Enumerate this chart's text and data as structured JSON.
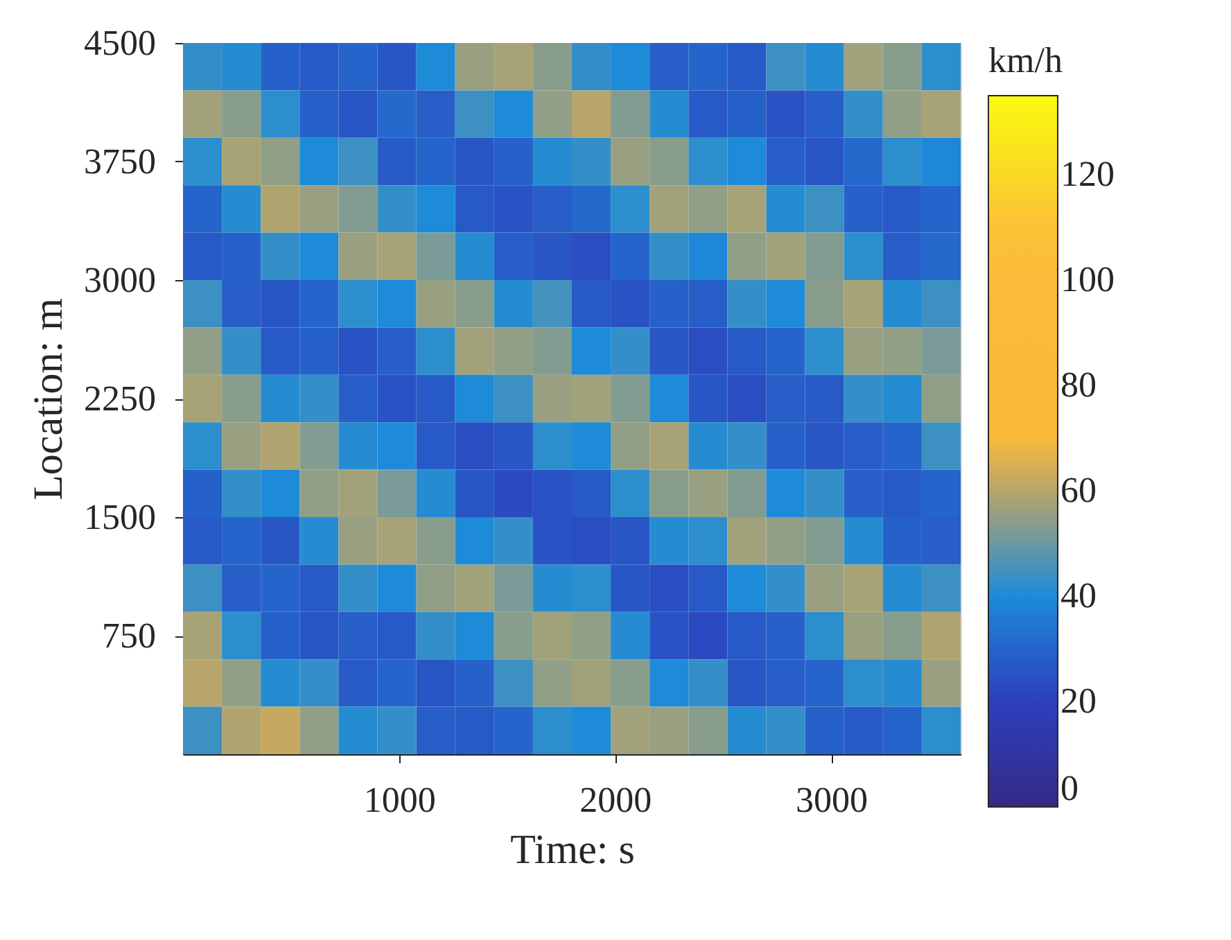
{
  "chart_data": {
    "type": "heatmap",
    "xlabel": "Time: s",
    "ylabel": "Location: m",
    "clabel": "km/h",
    "x": [
      90,
      270,
      450,
      630,
      810,
      990,
      1170,
      1350,
      1530,
      1710,
      1890,
      2070,
      2250,
      2430,
      2610,
      2790,
      2970,
      3150,
      3330,
      3510
    ],
    "y": [
      4350,
      4050,
      3750,
      3450,
      3150,
      2850,
      2550,
      2250,
      1950,
      1650,
      1350,
      1050,
      750,
      450,
      150
    ],
    "cells": [
      [
        43,
        41,
        29,
        27,
        30,
        26,
        40,
        56,
        58,
        54,
        43,
        40,
        28,
        30,
        27,
        44,
        41,
        57,
        54,
        42
      ],
      [
        57,
        54,
        42,
        29,
        26,
        31,
        28,
        44,
        40,
        55,
        60,
        53,
        41,
        27,
        29,
        25,
        28,
        43,
        55,
        58
      ],
      [
        42,
        58,
        55,
        40,
        44,
        27,
        30,
        26,
        29,
        41,
        43,
        56,
        54,
        42,
        40,
        28,
        26,
        31,
        42,
        39
      ],
      [
        30,
        41,
        59,
        56,
        53,
        43,
        40,
        27,
        25,
        28,
        31,
        42,
        57,
        55,
        58,
        41,
        44,
        29,
        27,
        30
      ],
      [
        27,
        29,
        43,
        40,
        56,
        58,
        52,
        41,
        28,
        26,
        24,
        30,
        43,
        39,
        55,
        57,
        53,
        42,
        28,
        31
      ],
      [
        44,
        28,
        26,
        30,
        42,
        40,
        56,
        54,
        41,
        45,
        27,
        25,
        29,
        28,
        43,
        40,
        54,
        58,
        41,
        44
      ],
      [
        55,
        43,
        27,
        29,
        25,
        28,
        42,
        57,
        55,
        53,
        40,
        43,
        26,
        24,
        27,
        30,
        42,
        56,
        55,
        52
      ],
      [
        58,
        54,
        41,
        43,
        28,
        25,
        27,
        40,
        44,
        56,
        57,
        53,
        40,
        26,
        24,
        28,
        27,
        43,
        41,
        55
      ],
      [
        42,
        56,
        59,
        53,
        41,
        40,
        27,
        24,
        26,
        42,
        40,
        55,
        58,
        41,
        43,
        29,
        26,
        28,
        30,
        44
      ],
      [
        29,
        43,
        40,
        55,
        57,
        52,
        41,
        26,
        23,
        25,
        27,
        42,
        54,
        56,
        53,
        40,
        43,
        28,
        27,
        30
      ],
      [
        27,
        30,
        26,
        41,
        56,
        58,
        54,
        40,
        43,
        25,
        24,
        26,
        41,
        42,
        57,
        55,
        53,
        41,
        29,
        28
      ],
      [
        44,
        28,
        30,
        27,
        43,
        40,
        55,
        57,
        52,
        41,
        42,
        26,
        24,
        27,
        40,
        43,
        56,
        58,
        41,
        44
      ],
      [
        58,
        42,
        29,
        26,
        28,
        27,
        43,
        40,
        54,
        57,
        55,
        41,
        25,
        23,
        27,
        29,
        42,
        56,
        54,
        59
      ],
      [
        60,
        55,
        41,
        43,
        27,
        30,
        26,
        29,
        44,
        55,
        57,
        54,
        40,
        43,
        26,
        28,
        30,
        42,
        41,
        56
      ],
      [
        44,
        59,
        62,
        55,
        41,
        43,
        28,
        27,
        30,
        42,
        40,
        57,
        56,
        54,
        41,
        43,
        29,
        27,
        30,
        42
      ]
    ],
    "clim": [
      0,
      135
    ],
    "cticks": [
      0,
      20,
      40,
      60,
      80,
      100,
      120
    ],
    "xlim": [
      0,
      3600
    ],
    "xticks": [
      1000,
      2000,
      3000
    ],
    "ylim": [
      0,
      4500
    ],
    "yticks": [
      750,
      1500,
      2250,
      3000,
      3750,
      4500
    ],
    "grid": false
  }
}
